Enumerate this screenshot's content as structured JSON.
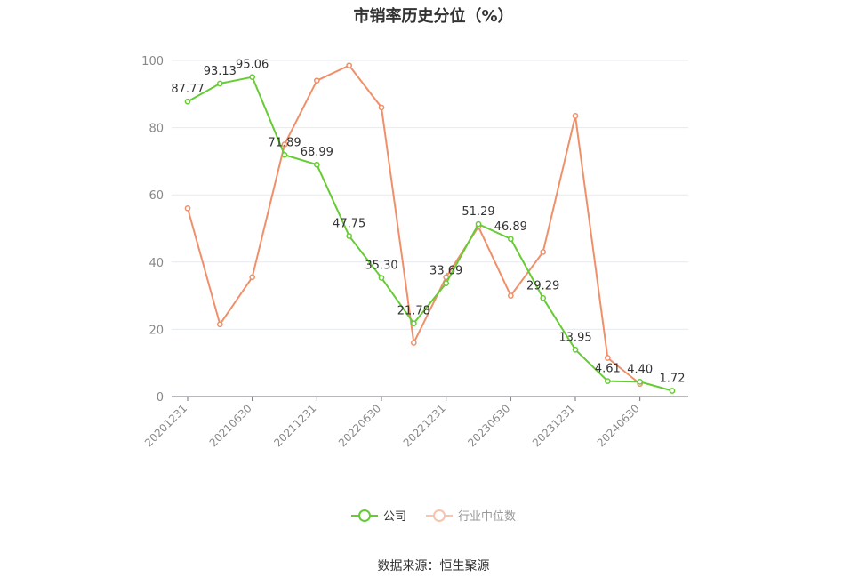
{
  "chart_data": {
    "type": "line",
    "title": "市销率历史分位（%）",
    "x": [
      "20201231",
      "20210331",
      "20210630",
      "20210930",
      "20211231",
      "20220331",
      "20220630",
      "20220930",
      "20221231",
      "20230331",
      "20230630",
      "20230930",
      "20231231",
      "20240331",
      "20240630",
      "20240930"
    ],
    "x_tick_labels": [
      "20201231",
      "20210630",
      "20211231",
      "20220630",
      "20221231",
      "20230630",
      "20231231",
      "20240630"
    ],
    "ylim": [
      0,
      100
    ],
    "y_ticks": [
      0,
      20,
      40,
      60,
      80,
      100
    ],
    "grid": true,
    "legend_position": "bottom",
    "series": [
      {
        "name": "公司",
        "color": "#66cc33",
        "values": [
          87.77,
          93.13,
          95.06,
          71.89,
          68.99,
          47.75,
          35.3,
          21.78,
          33.69,
          51.29,
          46.89,
          29.29,
          13.95,
          4.61,
          4.4,
          1.72
        ],
        "labels": [
          "87.77",
          "93.13",
          "95.06",
          "71.89",
          "68.99",
          "47.75",
          "35.30",
          "21.78",
          "33.69",
          "51.29",
          "46.89",
          "29.29",
          "13.95",
          "4.61",
          "4.40",
          "1.72"
        ]
      },
      {
        "name": "行业中位数",
        "color": "#f0906a",
        "values": [
          56,
          21.5,
          35.5,
          75,
          94,
          98.5,
          86,
          16,
          35.5,
          50.5,
          30,
          43,
          83.5,
          11.5,
          3.8,
          null
        ]
      }
    ]
  },
  "source": "数据来源：恒生聚源"
}
